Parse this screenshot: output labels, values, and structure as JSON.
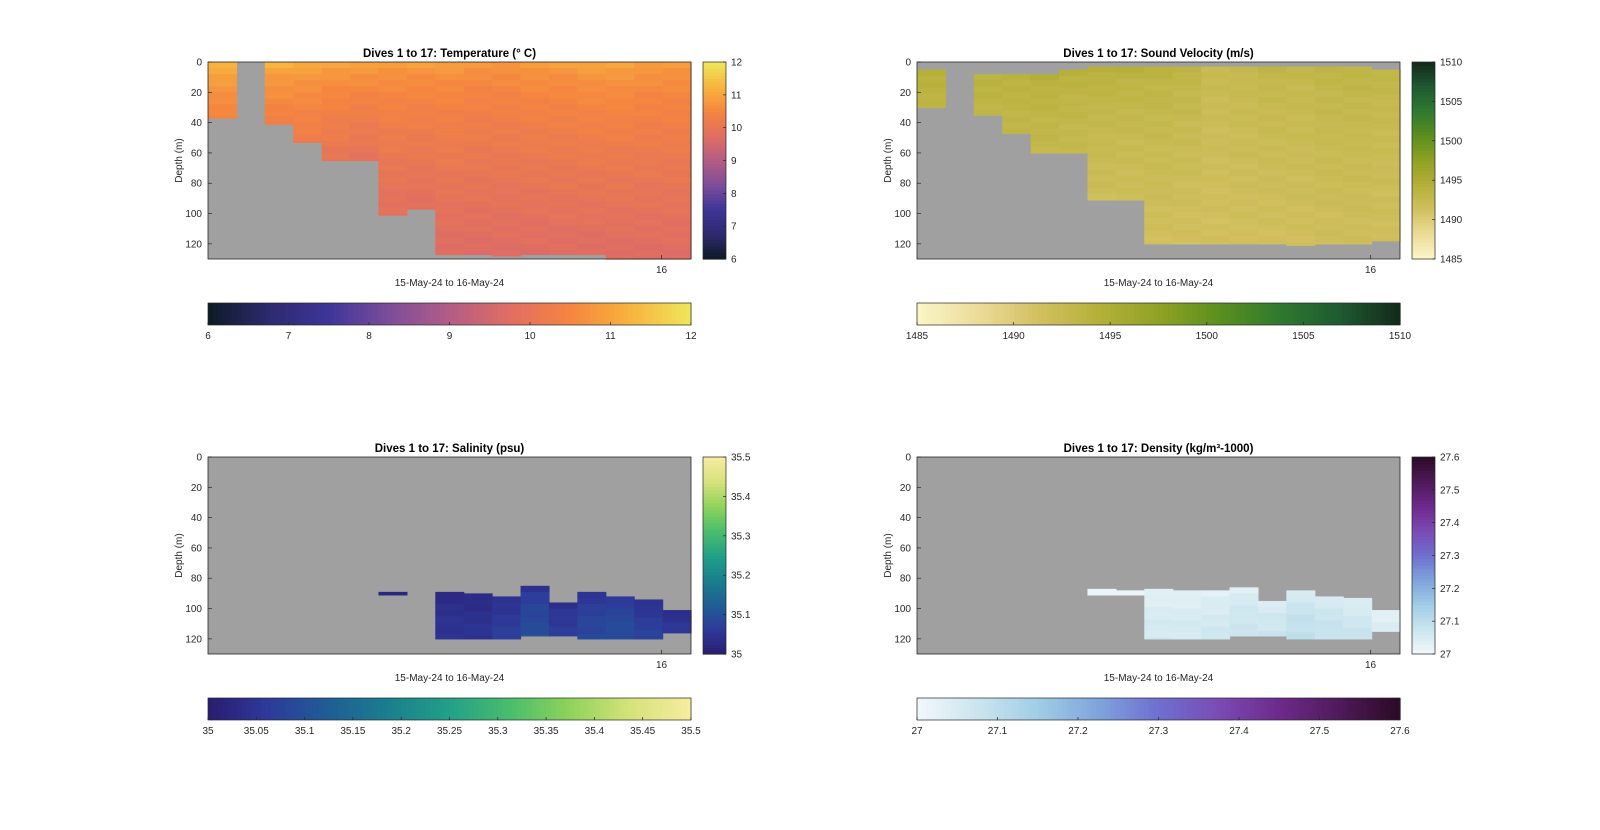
{
  "figure": {
    "xlabel": "15-May-24 to 16-May-24",
    "ylabel": "Depth (m)",
    "x_tick": "16",
    "no_data_color": "#a0a0a0"
  },
  "chart_data": [
    {
      "type": "heatmap",
      "title": "Dives 1 to 17: Temperature (° C)",
      "xlabel": "15-May-24 to 16-May-24",
      "ylabel": "Depth (m)",
      "ylim": [
        130,
        0
      ],
      "y_ticks": [
        "0",
        "20",
        "40",
        "60",
        "80",
        "100",
        "120"
      ],
      "x_ticks": [
        "16"
      ],
      "clim": [
        6,
        12
      ],
      "cbar_ticks": [
        "6",
        "7",
        "8",
        "9",
        "10",
        "11",
        "12"
      ],
      "hbar_ticks": [
        "6",
        "7",
        "8",
        "9",
        "10",
        "11",
        "12"
      ],
      "colormap": [
        "#0d1a24",
        "#2c2a6e",
        "#3d3598",
        "#7d4d9a",
        "#b35c86",
        "#e06e62",
        "#f5853f",
        "#f7b43e",
        "#f0e65a"
      ],
      "columns": [
        {
          "top": 0,
          "bottom": 37,
          "surface": 11.3,
          "deep": 10.4
        },
        {
          "top": 0,
          "bottom": 0,
          "surface": 11.3,
          "deep": 10.4
        },
        {
          "top": 0,
          "bottom": 41,
          "surface": 11.2,
          "deep": 10.3
        },
        {
          "top": 0,
          "bottom": 53,
          "surface": 11.1,
          "deep": 10.2
        },
        {
          "top": 0,
          "bottom": 65,
          "surface": 11.0,
          "deep": 10.0
        },
        {
          "top": 0,
          "bottom": 65,
          "surface": 11.0,
          "deep": 9.9
        },
        {
          "top": 0,
          "bottom": 101,
          "surface": 10.9,
          "deep": 9.8
        },
        {
          "top": 0,
          "bottom": 97,
          "surface": 10.9,
          "deep": 9.8
        },
        {
          "top": 0,
          "bottom": 127,
          "surface": 10.9,
          "deep": 9.7
        },
        {
          "top": 0,
          "bottom": 127,
          "surface": 10.8,
          "deep": 9.7
        },
        {
          "top": 0,
          "bottom": 128,
          "surface": 10.8,
          "deep": 9.7
        },
        {
          "top": 0,
          "bottom": 127,
          "surface": 10.9,
          "deep": 9.7
        },
        {
          "top": 0,
          "bottom": 127,
          "surface": 10.9,
          "deep": 9.7
        },
        {
          "top": 0,
          "bottom": 127,
          "surface": 11.0,
          "deep": 9.7
        },
        {
          "top": 0,
          "bottom": 130,
          "surface": 11.0,
          "deep": 9.7
        },
        {
          "top": 0,
          "bottom": 130,
          "surface": 10.9,
          "deep": 9.7
        },
        {
          "top": 0,
          "bottom": 130,
          "surface": 10.9,
          "deep": 9.7
        }
      ]
    },
    {
      "type": "heatmap",
      "title": "Dives 1 to 17: Sound Velocity (m/s)",
      "xlabel": "15-May-24 to 16-May-24",
      "ylabel": "Depth (m)",
      "ylim": [
        130,
        0
      ],
      "y_ticks": [
        "0",
        "20",
        "40",
        "60",
        "80",
        "100",
        "120"
      ],
      "x_ticks": [
        "16"
      ],
      "clim": [
        1485,
        1510
      ],
      "cbar_ticks": [
        "1485",
        "1490",
        "1495",
        "1500",
        "1505",
        "1510"
      ],
      "hbar_ticks": [
        "1485",
        "1490",
        "1495",
        "1500",
        "1505",
        "1510"
      ],
      "colormap": [
        "#fbf6c8",
        "#ecdc9a",
        "#d2c060",
        "#b5b03a",
        "#8fa224",
        "#5c8f1e",
        "#2f7a30",
        "#1e5a32",
        "#13291a"
      ],
      "columns": [
        {
          "top": 5,
          "bottom": 30,
          "surface": 1494.3,
          "deep": 1493.5
        },
        {
          "top": 8,
          "bottom": 8,
          "surface": 1494.3,
          "deep": 1493.5
        },
        {
          "top": 8,
          "bottom": 35,
          "surface": 1494.0,
          "deep": 1493.2
        },
        {
          "top": 8,
          "bottom": 47,
          "surface": 1494.0,
          "deep": 1493.0
        },
        {
          "top": 8,
          "bottom": 60,
          "surface": 1494.3,
          "deep": 1492.8
        },
        {
          "top": 5,
          "bottom": 60,
          "surface": 1494.2,
          "deep": 1492.6
        },
        {
          "top": 3,
          "bottom": 91,
          "surface": 1494.3,
          "deep": 1491.7
        },
        {
          "top": 3,
          "bottom": 91,
          "surface": 1494.2,
          "deep": 1491.6
        },
        {
          "top": 3,
          "bottom": 120,
          "surface": 1494.0,
          "deep": 1491.4
        },
        {
          "top": 3,
          "bottom": 120,
          "surface": 1493.6,
          "deep": 1491.3
        },
        {
          "top": 3,
          "bottom": 120,
          "surface": 1492.6,
          "deep": 1491.3
        },
        {
          "top": 3,
          "bottom": 120,
          "surface": 1492.8,
          "deep": 1491.4
        },
        {
          "top": 3,
          "bottom": 120,
          "surface": 1493.2,
          "deep": 1491.4
        },
        {
          "top": 3,
          "bottom": 121,
          "surface": 1493.0,
          "deep": 1491.5
        },
        {
          "top": 3,
          "bottom": 120,
          "surface": 1493.4,
          "deep": 1491.6
        },
        {
          "top": 3,
          "bottom": 120,
          "surface": 1493.6,
          "deep": 1491.6
        },
        {
          "top": 5,
          "bottom": 118,
          "surface": 1493.3,
          "deep": 1491.5
        }
      ]
    },
    {
      "type": "heatmap",
      "title": "Dives 1 to 17: Salinity (psu)",
      "xlabel": "15-May-24 to 16-May-24",
      "ylabel": "Depth (m)",
      "ylim": [
        130,
        0
      ],
      "y_ticks": [
        "0",
        "20",
        "40",
        "60",
        "80",
        "100",
        "120"
      ],
      "x_ticks": [
        "16"
      ],
      "clim": [
        35,
        35.5
      ],
      "cbar_ticks": [
        "35",
        "35.1",
        "35.2",
        "35.3",
        "35.4",
        "35.5"
      ],
      "hbar_ticks": [
        "35",
        "35.05",
        "35.1",
        "35.15",
        "35.2",
        "35.25",
        "35.3",
        "35.35",
        "35.4",
        "35.45",
        "35.5"
      ],
      "colormap": [
        "#2a1c70",
        "#2e3a9a",
        "#1f5e96",
        "#1a7f8e",
        "#22a088",
        "#4abd6c",
        "#8fd35a",
        "#d6e27a",
        "#f6eca0"
      ],
      "columns": [
        {
          "top": 0,
          "bottom": 0,
          "surface": 35.0,
          "deep": 35.0
        },
        {
          "top": 0,
          "bottom": 0,
          "surface": 35.0,
          "deep": 35.0
        },
        {
          "top": 0,
          "bottom": 0,
          "surface": 35.0,
          "deep": 35.0
        },
        {
          "top": 0,
          "bottom": 0,
          "surface": 35.0,
          "deep": 35.0
        },
        {
          "top": 0,
          "bottom": 0,
          "surface": 35.0,
          "deep": 35.0
        },
        {
          "top": 0,
          "bottom": 0,
          "surface": 35.0,
          "deep": 35.0
        },
        {
          "top": 89,
          "bottom": 91,
          "surface": 35.02,
          "deep": 35.02
        },
        {
          "top": 0,
          "bottom": 0,
          "surface": 35.0,
          "deep": 35.0
        },
        {
          "top": 89,
          "bottom": 120,
          "surface": 35.03,
          "deep": 35.05
        },
        {
          "top": 90,
          "bottom": 120,
          "surface": 35.03,
          "deep": 35.05
        },
        {
          "top": 92,
          "bottom": 120,
          "surface": 35.04,
          "deep": 35.07
        },
        {
          "top": 85,
          "bottom": 118,
          "surface": 35.05,
          "deep": 35.1
        },
        {
          "top": 96,
          "bottom": 118,
          "surface": 35.04,
          "deep": 35.07
        },
        {
          "top": 89,
          "bottom": 120,
          "surface": 35.05,
          "deep": 35.09
        },
        {
          "top": 92,
          "bottom": 120,
          "surface": 35.06,
          "deep": 35.1
        },
        {
          "top": 94,
          "bottom": 120,
          "surface": 35.04,
          "deep": 35.08
        },
        {
          "top": 101,
          "bottom": 116,
          "surface": 35.04,
          "deep": 35.06
        }
      ]
    },
    {
      "type": "heatmap",
      "title": "Dives 1 to 17: Density (kg/m³-1000)",
      "xlabel": "15-May-24 to 16-May-24",
      "ylabel": "Depth (m)",
      "ylim": [
        130,
        0
      ],
      "y_ticks": [
        "0",
        "20",
        "40",
        "60",
        "80",
        "100",
        "120"
      ],
      "x_ticks": [
        "16"
      ],
      "clim": [
        27,
        27.6
      ],
      "cbar_ticks": [
        "27",
        "27.1",
        "27.2",
        "27.3",
        "27.4",
        "27.5",
        "27.6"
      ],
      "hbar_ticks": [
        "27",
        "27.1",
        "27.2",
        "27.3",
        "27.4",
        "27.5",
        "27.6"
      ],
      "colormap": [
        "#f2f8fa",
        "#cbe5ee",
        "#a0cde6",
        "#7fa4dc",
        "#6f6fcf",
        "#7a4bb5",
        "#6e2a8c",
        "#4e1a5a",
        "#2b0a25"
      ],
      "columns": [
        {
          "top": 0,
          "bottom": 0,
          "surface": 27.0,
          "deep": 27.0
        },
        {
          "top": 0,
          "bottom": 0,
          "surface": 27.0,
          "deep": 27.0
        },
        {
          "top": 0,
          "bottom": 0,
          "surface": 27.0,
          "deep": 27.0
        },
        {
          "top": 0,
          "bottom": 0,
          "surface": 27.0,
          "deep": 27.0
        },
        {
          "top": 0,
          "bottom": 0,
          "surface": 27.0,
          "deep": 27.0
        },
        {
          "top": 0,
          "bottom": 0,
          "surface": 27.0,
          "deep": 27.0
        },
        {
          "top": 87,
          "bottom": 91,
          "surface": 27.02,
          "deep": 27.02
        },
        {
          "top": 88,
          "bottom": 91,
          "surface": 27.02,
          "deep": 27.02
        },
        {
          "top": 87,
          "bottom": 120,
          "surface": 27.03,
          "deep": 27.06
        },
        {
          "top": 88,
          "bottom": 120,
          "surface": 27.03,
          "deep": 27.06
        },
        {
          "top": 88,
          "bottom": 120,
          "surface": 27.03,
          "deep": 27.07
        },
        {
          "top": 86,
          "bottom": 118,
          "surface": 27.04,
          "deep": 27.08
        },
        {
          "top": 95,
          "bottom": 118,
          "surface": 27.04,
          "deep": 27.08
        },
        {
          "top": 88,
          "bottom": 120,
          "surface": 27.05,
          "deep": 27.1
        },
        {
          "top": 92,
          "bottom": 120,
          "surface": 27.05,
          "deep": 27.09
        },
        {
          "top": 93,
          "bottom": 120,
          "surface": 27.04,
          "deep": 27.08
        },
        {
          "top": 101,
          "bottom": 115,
          "surface": 27.03,
          "deep": 27.05
        }
      ]
    }
  ]
}
